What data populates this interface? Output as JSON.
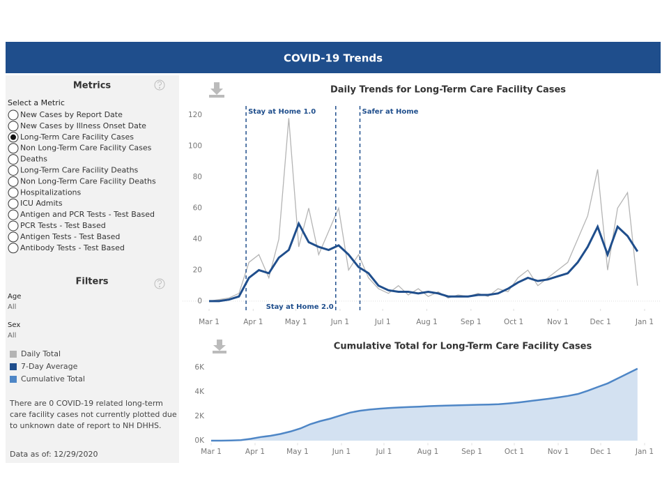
{
  "header": {
    "title": "COVID-19 Trends"
  },
  "sidebar": {
    "metrics_title": "Metrics",
    "select_label": "Select a Metric",
    "options": [
      "New Cases by Report Date",
      "New Cases by Illness Onset Date",
      "Long-Term Care Facility Cases",
      "Non Long-Term Care Facility Cases",
      "Deaths",
      "Long-Term Care Facility Deaths",
      "Non Long-Term Care Facility Deaths",
      "Hospitalizations",
      "ICU Admits",
      "Antigen and PCR Tests - Test Based",
      "PCR Tests - Test Based",
      "Antigen Tests - Test Based",
      "Antibody Tests - Test Based"
    ],
    "selected": 2,
    "filters_title": "Filters",
    "filters": [
      {
        "label": "Age",
        "value": "All"
      },
      {
        "label": "Sex",
        "value": "All"
      }
    ],
    "note": "There are 0 COVID-19 related long-term care facility cases not currently plotted due to unknown date of report to NH DHHS.",
    "data_as_of": "Data as of: 12/29/2020"
  },
  "chart_data": [
    {
      "type": "line",
      "title": "Daily Trends for Long-Term Care Facility Cases",
      "x": [
        "Mar 1",
        "Mar 8",
        "Mar 15",
        "Mar 22",
        "Mar 29",
        "Apr 5",
        "Apr 12",
        "Apr 19",
        "Apr 26",
        "May 3",
        "May 10",
        "May 17",
        "May 24",
        "May 31",
        "Jun 7",
        "Jun 14",
        "Jun 21",
        "Jun 28",
        "Jul 5",
        "Jul 12",
        "Jul 19",
        "Jul 26",
        "Aug 2",
        "Aug 9",
        "Aug 16",
        "Aug 23",
        "Aug 30",
        "Sep 6",
        "Sep 13",
        "Sep 20",
        "Sep 27",
        "Oct 4",
        "Oct 11",
        "Oct 18",
        "Oct 25",
        "Nov 1",
        "Nov 8",
        "Nov 15",
        "Nov 22",
        "Nov 29",
        "Dec 6",
        "Dec 13",
        "Dec 20",
        "Dec 27"
      ],
      "xlim": [
        "Mar 1",
        "Jan 1"
      ],
      "xticks": [
        "Mar 1",
        "Apr 1",
        "May 1",
        "Jun 1",
        "Jul 1",
        "Aug 1",
        "Sep 1",
        "Oct 1",
        "Nov 1",
        "Dec 1",
        "Jan 1"
      ],
      "ylim": [
        -5,
        125
      ],
      "yticks": [
        0,
        20,
        40,
        60,
        80,
        100,
        120
      ],
      "series": [
        {
          "name": "Daily Total",
          "color": "#b4b4b4",
          "values": [
            0,
            1,
            2,
            5,
            25,
            30,
            15,
            40,
            118,
            35,
            60,
            30,
            45,
            60,
            20,
            30,
            15,
            8,
            5,
            10,
            4,
            8,
            3,
            6,
            2,
            4,
            3,
            5,
            3,
            8,
            6,
            15,
            20,
            10,
            15,
            20,
            25,
            40,
            55,
            85,
            20,
            60,
            70,
            10
          ]
        },
        {
          "name": "7-Day Average",
          "color": "#1f4e8c",
          "values": [
            0,
            0,
            1,
            3,
            15,
            20,
            18,
            28,
            33,
            50,
            38,
            35,
            33,
            36,
            30,
            22,
            18,
            10,
            7,
            6,
            6,
            5,
            6,
            5,
            3,
            3,
            3,
            4,
            4,
            5,
            8,
            12,
            15,
            13,
            14,
            16,
            18,
            25,
            35,
            48,
            30,
            48,
            42,
            32
          ]
        }
      ],
      "annotations": [
        {
          "x": "Mar 27",
          "label": "Stay at Home 1.0",
          "position": "top"
        },
        {
          "x": "May 29",
          "label": "Stay at Home 2.0",
          "position": "bottom"
        },
        {
          "x": "Jun 15",
          "label": "Safer at Home",
          "position": "top"
        }
      ]
    },
    {
      "type": "area",
      "title": "Cumulative Total for Long-Term Care Facility Cases",
      "x": [
        "Mar 1",
        "Mar 8",
        "Mar 15",
        "Mar 22",
        "Mar 29",
        "Apr 5",
        "Apr 12",
        "Apr 19",
        "Apr 26",
        "May 3",
        "May 10",
        "May 17",
        "May 24",
        "May 31",
        "Jun 7",
        "Jun 14",
        "Jun 21",
        "Jun 28",
        "Jul 5",
        "Jul 12",
        "Jul 19",
        "Jul 26",
        "Aug 2",
        "Aug 9",
        "Aug 16",
        "Aug 23",
        "Aug 30",
        "Sep 6",
        "Sep 13",
        "Sep 20",
        "Sep 27",
        "Oct 4",
        "Oct 11",
        "Oct 18",
        "Oct 25",
        "Nov 1",
        "Nov 8",
        "Nov 15",
        "Nov 22",
        "Nov 29",
        "Dec 6",
        "Dec 13",
        "Dec 20",
        "Dec 27"
      ],
      "xlim": [
        "Mar 1",
        "Jan 1"
      ],
      "xticks": [
        "Mar 1",
        "Apr 1",
        "May 1",
        "Jun 1",
        "Jul 1",
        "Aug 1",
        "Sep 1",
        "Oct 1",
        "Nov 1",
        "Dec 1",
        "Jan 1"
      ],
      "ylim": [
        -200,
        6600
      ],
      "yticks": [
        {
          "value": 0,
          "label": "0K"
        },
        {
          "value": 2000,
          "label": "2K"
        },
        {
          "value": 4000,
          "label": "4K"
        },
        {
          "value": 6000,
          "label": "6K"
        }
      ],
      "series": [
        {
          "name": "Cumulative Total",
          "color": "#4e86c6",
          "values": [
            0,
            0,
            10,
            40,
            150,
            300,
            400,
            550,
            750,
            1000,
            1350,
            1600,
            1800,
            2050,
            2300,
            2450,
            2550,
            2620,
            2680,
            2720,
            2760,
            2790,
            2830,
            2860,
            2880,
            2900,
            2920,
            2940,
            2960,
            2990,
            3050,
            3130,
            3230,
            3330,
            3430,
            3540,
            3670,
            3830,
            4100,
            4400,
            4700,
            5100,
            5500,
            5900
          ]
        }
      ]
    }
  ]
}
